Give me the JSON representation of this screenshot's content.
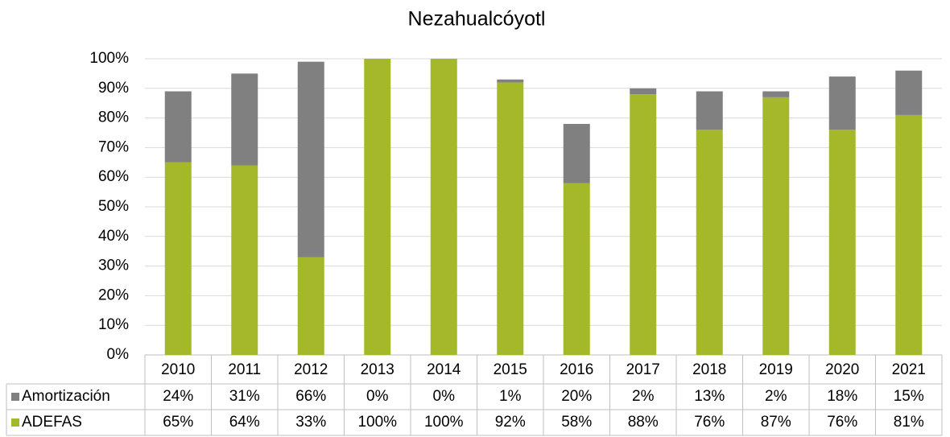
{
  "chart_data": {
    "type": "stacked_bar",
    "title": "Nezahualcóyotl",
    "categories": [
      "2010",
      "2011",
      "2012",
      "2013",
      "2014",
      "2015",
      "2016",
      "2017",
      "2018",
      "2019",
      "2020",
      "2021"
    ],
    "series": [
      {
        "name": "Amortización",
        "color": "#808080",
        "values": [
          24,
          31,
          66,
          0,
          0,
          1,
          20,
          2,
          13,
          2,
          18,
          15
        ],
        "value_labels": [
          "24%",
          "31%",
          "66%",
          "0%",
          "0%",
          "1%",
          "20%",
          "2%",
          "13%",
          "2%",
          "18%",
          "15%"
        ]
      },
      {
        "name": "ADEFAS",
        "color": "#a5b82a",
        "values": [
          65,
          64,
          33,
          100,
          100,
          92,
          58,
          88,
          76,
          87,
          76,
          81
        ],
        "value_labels": [
          "65%",
          "64%",
          "33%",
          "100%",
          "100%",
          "92%",
          "58%",
          "88%",
          "76%",
          "87%",
          "76%",
          "81%"
        ]
      }
    ],
    "ylim": [
      0,
      100
    ],
    "yticks": [
      {
        "value": 0,
        "label": "0%"
      },
      {
        "value": 10,
        "label": "10%"
      },
      {
        "value": 20,
        "label": "20%"
      },
      {
        "value": 30,
        "label": "30%"
      },
      {
        "value": 40,
        "label": "40%"
      },
      {
        "value": 50,
        "label": "50%"
      },
      {
        "value": 60,
        "label": "60%"
      },
      {
        "value": 70,
        "label": "70%"
      },
      {
        "value": 80,
        "label": "80%"
      },
      {
        "value": 90,
        "label": "90%"
      },
      {
        "value": 100,
        "label": "100%"
      }
    ],
    "grid": true
  }
}
